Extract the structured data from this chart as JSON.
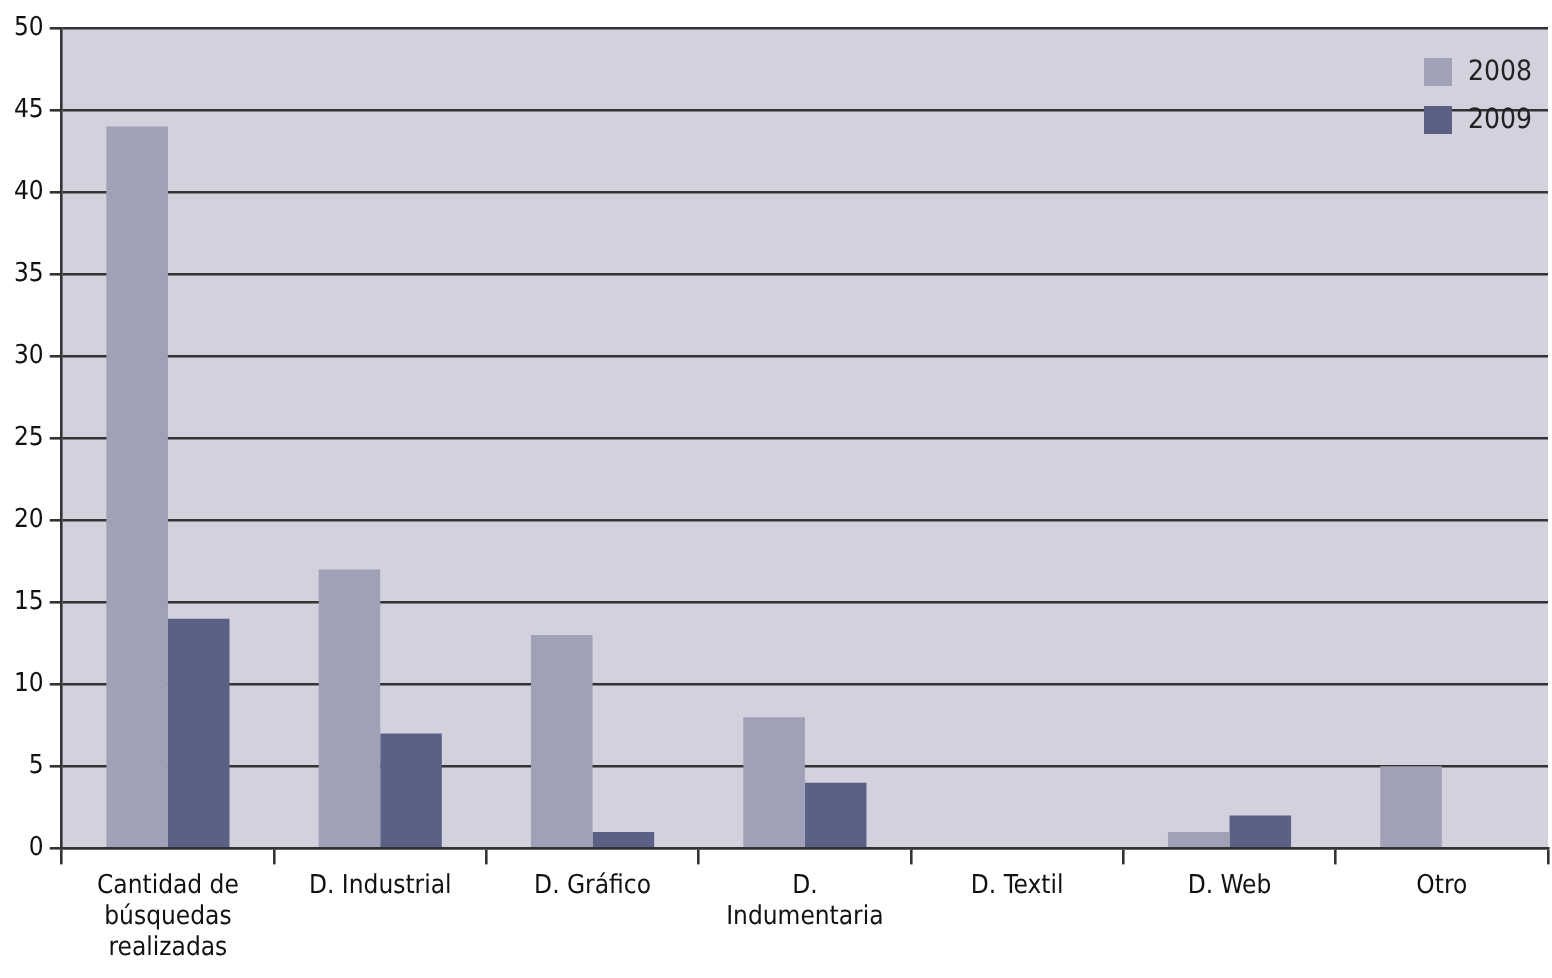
{
  "chart_data": {
    "type": "bar",
    "categories": [
      "Cantidad de búsquedas realizadas",
      "D. Industrial",
      "D. Gráfico",
      "D. Indumentaria",
      "D. Textil",
      "D. Web",
      "Otro"
    ],
    "series": [
      {
        "name": "2008",
        "color": "#a0a0b6",
        "values": [
          44,
          17,
          13,
          8,
          0,
          1,
          5
        ]
      },
      {
        "name": "2009",
        "color": "#5a6185",
        "values": [
          14,
          7,
          1,
          4,
          0,
          2,
          0
        ]
      }
    ],
    "ylim": [
      0,
      50
    ],
    "yticks": [
      0,
      5,
      10,
      15,
      20,
      25,
      30,
      35,
      40,
      45,
      50
    ],
    "grid": "y",
    "legend": "top right"
  }
}
